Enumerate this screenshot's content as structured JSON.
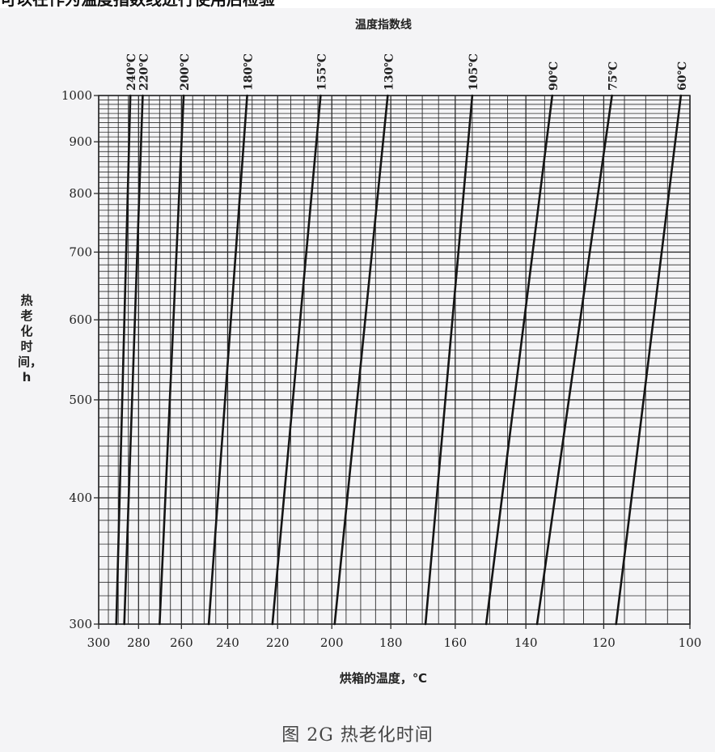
{
  "top_caption": "可以在作为温度指数线进行使用后检验",
  "figure_caption": "图 2G   热老化时间",
  "chart_data": {
    "type": "line",
    "title": "温度指数线",
    "xlabel": "烘箱的温度，℃",
    "ylabel": "热老化时间，h",
    "x_scale": "reciprocal",
    "y_scale": "log",
    "xlim": [
      300,
      100
    ],
    "ylim": [
      300,
      1000
    ],
    "x_ticks": [
      "300",
      "280",
      "260",
      "240",
      "220",
      "200",
      "180",
      "160",
      "140",
      "120",
      "100"
    ],
    "y_ticks": [
      "300",
      "400",
      "500",
      "600",
      "700",
      "800",
      "900",
      "1000"
    ],
    "grid": true,
    "series": [
      {
        "name": "240℃",
        "x": [
          291,
          284
        ],
        "y": [
          300,
          1000
        ]
      },
      {
        "name": "220℃",
        "x": [
          287,
          278
        ],
        "y": [
          300,
          1000
        ]
      },
      {
        "name": "200℃",
        "x": [
          270,
          259
        ],
        "y": [
          300,
          1000
        ]
      },
      {
        "name": "180℃",
        "x": [
          248,
          232
        ],
        "y": [
          300,
          1000
        ]
      },
      {
        "name": "155℃",
        "x": [
          222,
          204
        ],
        "y": [
          300,
          1000
        ]
      },
      {
        "name": "130℃",
        "x": [
          199,
          181
        ],
        "y": [
          300,
          1000
        ]
      },
      {
        "name": "105℃",
        "x": [
          169,
          155
        ],
        "y": [
          300,
          1000
        ]
      },
      {
        "name": "90℃",
        "x": [
          151,
          133
        ],
        "y": [
          300,
          1000
        ]
      },
      {
        "name": "75℃",
        "x": [
          137,
          118
        ],
        "y": [
          300,
          1000
        ]
      },
      {
        "name": "60℃",
        "x": [
          117,
          102
        ],
        "y": [
          300,
          1000
        ]
      }
    ]
  },
  "colors": {
    "grid": "#2b2b2b",
    "line": "#151515",
    "background": "#f4f4f6"
  }
}
